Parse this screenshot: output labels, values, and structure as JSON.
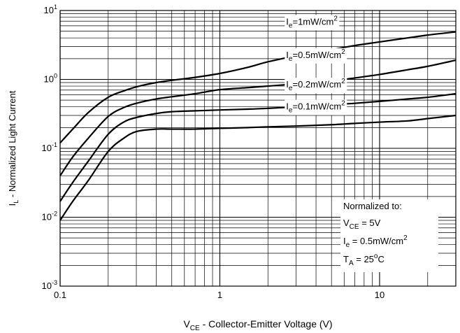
{
  "chart_data": {
    "type": "line",
    "title": "",
    "xlabel": {
      "main": "V",
      "sub": "CE",
      "rest": " - Collector-Emitter Voltage (V)"
    },
    "ylabel": {
      "main": "I",
      "sub": "L",
      "rest": " - Normalized Light Current"
    },
    "x_scale": "log",
    "y_scale": "log",
    "xlim": [
      0.1,
      30
    ],
    "ylim": [
      0.001,
      10
    ],
    "grid": true,
    "x_ticks": [
      {
        "value": 0.1,
        "label": "0.1"
      },
      {
        "value": 1,
        "label": "1"
      },
      {
        "value": 10,
        "label": "10"
      }
    ],
    "y_ticks": [
      {
        "value": 10,
        "base": "10",
        "exp": "1"
      },
      {
        "value": 1,
        "base": "10",
        "exp": "0"
      },
      {
        "value": 0.1,
        "base": "10",
        "exp": "-1"
      },
      {
        "value": 0.01,
        "base": "10",
        "exp": "-2"
      },
      {
        "value": 0.001,
        "base": "10",
        "exp": "-3"
      }
    ],
    "series": [
      {
        "name": "Ie=1mW/cm2",
        "label_parts": {
          "main": "I",
          "sub": "e",
          "rest": "=1mW/cm",
          "sup": "2"
        },
        "x": [
          0.1,
          0.12,
          0.15,
          0.2,
          0.25,
          0.3,
          0.4,
          0.5,
          0.7,
          1,
          1.5,
          2,
          3,
          5,
          7,
          10,
          15,
          20,
          30
        ],
        "y": [
          0.12,
          0.19,
          0.33,
          0.55,
          0.68,
          0.78,
          0.9,
          0.97,
          1.07,
          1.22,
          1.5,
          1.8,
          2.2,
          2.7,
          3.1,
          3.5,
          4.0,
          4.4,
          4.9
        ]
      },
      {
        "name": "Ie=0.5mW/cm2",
        "label_parts": {
          "main": "I",
          "sub": "e",
          "rest": "=0.5mW/cm",
          "sup": "2"
        },
        "x": [
          0.1,
          0.12,
          0.15,
          0.2,
          0.25,
          0.3,
          0.4,
          0.5,
          0.7,
          1,
          1.5,
          2,
          3,
          5,
          7,
          10,
          15,
          20,
          30
        ],
        "y": [
          0.04,
          0.075,
          0.14,
          0.29,
          0.39,
          0.45,
          0.52,
          0.56,
          0.62,
          0.71,
          0.76,
          0.8,
          0.86,
          0.95,
          1.05,
          1.18,
          1.38,
          1.55,
          1.9
        ]
      },
      {
        "name": "Ie=0.2mW/cm2",
        "label_parts": {
          "main": "I",
          "sub": "e",
          "rest": "=0.2mW/cm",
          "sup": "2"
        },
        "x": [
          0.1,
          0.12,
          0.15,
          0.2,
          0.25,
          0.3,
          0.4,
          0.5,
          0.7,
          1,
          1.5,
          2,
          3,
          5,
          7,
          10,
          15,
          20,
          30
        ],
        "y": [
          0.017,
          0.032,
          0.065,
          0.16,
          0.24,
          0.28,
          0.32,
          0.34,
          0.35,
          0.36,
          0.37,
          0.38,
          0.4,
          0.43,
          0.45,
          0.48,
          0.52,
          0.55,
          0.62
        ]
      },
      {
        "name": "Ie=0.1mW/cm2",
        "label_parts": {
          "main": "I",
          "sub": "e",
          "rest": "=0.1mW/cm",
          "sup": "2"
        },
        "x": [
          0.1,
          0.12,
          0.15,
          0.2,
          0.25,
          0.3,
          0.4,
          0.5,
          0.7,
          1,
          1.5,
          2,
          3,
          5,
          7,
          10,
          15,
          20,
          30
        ],
        "y": [
          0.009,
          0.017,
          0.034,
          0.09,
          0.14,
          0.175,
          0.19,
          0.19,
          0.19,
          0.195,
          0.2,
          0.205,
          0.21,
          0.22,
          0.23,
          0.24,
          0.25,
          0.27,
          0.3
        ]
      }
    ],
    "annotation": {
      "heading": "Normalized to:",
      "lines": [
        {
          "main": "V",
          "sub": "CE",
          "rest": " = 5V",
          "sup": ""
        },
        {
          "main": "I",
          "sub": "e",
          "rest": " = 0.5mW/cm",
          "sup": "2"
        },
        {
          "main": "T",
          "sub": "A",
          "rest": " = 25",
          "sup": "o",
          "tail": "C"
        }
      ]
    }
  }
}
